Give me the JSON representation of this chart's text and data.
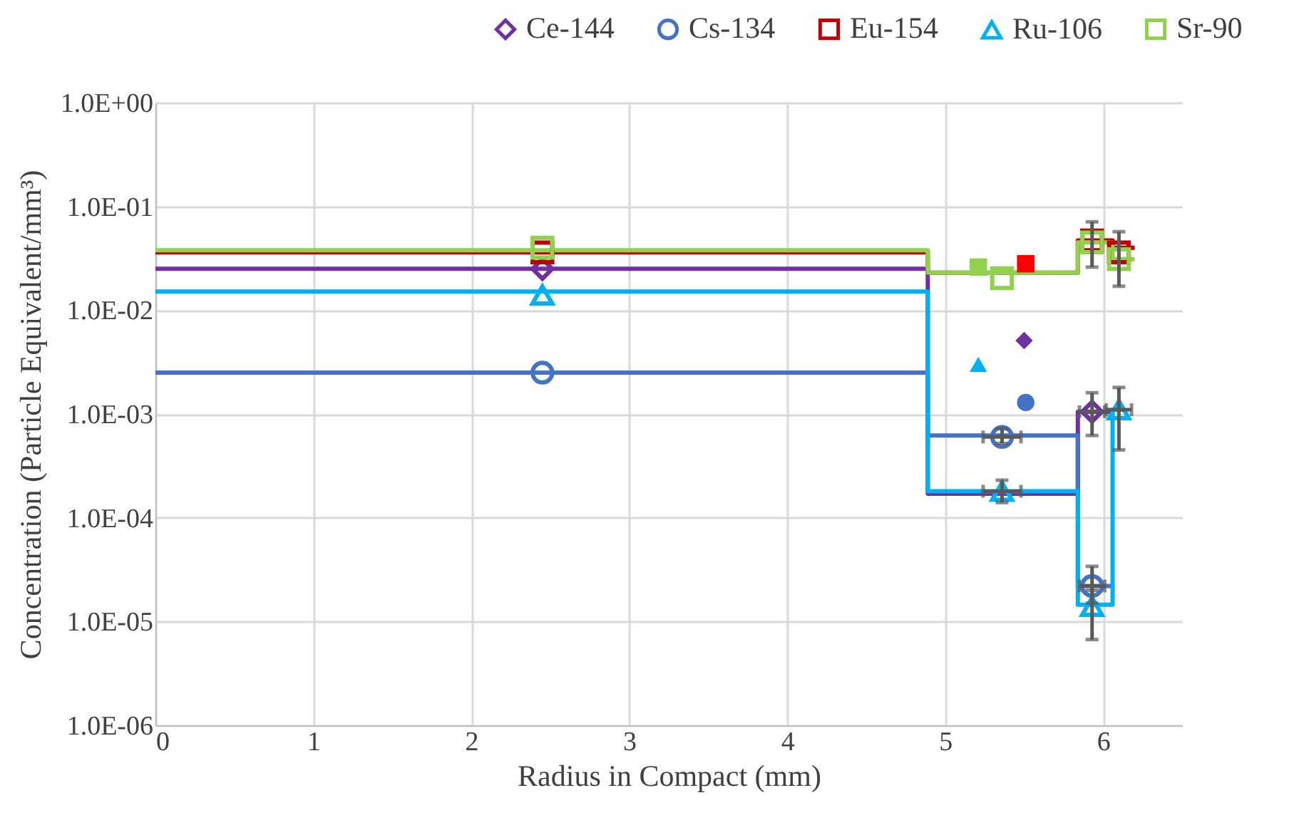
{
  "chart_data": {
    "type": "scatter",
    "xlabel": "Radius in Compact (mm)",
    "ylabel": "Concentration  (Particle Equivalent/mm³)",
    "log": "y",
    "grid": true,
    "legend": "top right",
    "xlim": [
      0,
      6.5
    ],
    "xticks": [
      0,
      1,
      2,
      3,
      4,
      5,
      6
    ],
    "ylim": [
      1e-06,
      1
    ],
    "yticks": [
      {
        "value": 1e-06,
        "label": "1.0E-06"
      },
      {
        "value": 1e-05,
        "label": "1.0E-05"
      },
      {
        "value": 0.0001,
        "label": "1.0E-04"
      },
      {
        "value": 0.001,
        "label": "1.0E-03"
      },
      {
        "value": 0.01,
        "label": "1.0E-02"
      },
      {
        "value": 0.1,
        "label": "1.0E-01"
      },
      {
        "value": 1,
        "label": "1.0E+00"
      }
    ],
    "series": [
      {
        "type": "step",
        "color": "#7030a0",
        "x": [
          0,
          4.89,
          5.84,
          6.06
        ],
        "values": [
          0.025,
          0.00017,
          0.00105,
          0.00105
        ]
      },
      {
        "type": "step",
        "color": "#4472c4",
        "x": [
          0,
          4.89,
          5.84,
          6.06
        ],
        "values": [
          0.0025,
          0.00062,
          2.2e-05,
          2.2e-05
        ]
      },
      {
        "type": "step",
        "color": "#c00000",
        "x": [
          0,
          4.89,
          5.84,
          6.06,
          6.2
        ],
        "values": [
          0.036,
          0.023,
          0.047,
          0.04,
          0.04
        ]
      },
      {
        "type": "step",
        "color": "#00b0f0",
        "x": [
          0,
          4.89,
          5.84,
          6.06,
          6.14
        ],
        "values": [
          0.0151,
          0.00018,
          1.45e-05,
          0.0011,
          0.0011
        ]
      },
      {
        "type": "step",
        "color": "#92d050",
        "x": [
          0,
          4.89,
          5.84,
          6.06,
          6.2
        ],
        "values": [
          0.0378,
          0.023,
          0.045,
          0.031,
          0.031
        ]
      },
      {
        "name": "Ce-144",
        "color": "#7030a0",
        "marker": "diamond",
        "x": [
          2.45,
          5.36,
          5.93
        ],
        "values": [
          0.025,
          null,
          0.00105
        ],
        "errors": [
          null,
          null,
          [
            0.00062,
            0.0016
          ]
        ],
        "xerrors": [
          null,
          null,
          0.08
        ]
      },
      {
        "name": "Cs-134",
        "color": "#4472c4",
        "marker": "circle",
        "x": [
          2.45,
          5.36,
          5.93
        ],
        "values": [
          0.0025,
          0.0006,
          2.2e-05
        ],
        "errors": [
          null,
          [
            0.00052,
            0.00072
          ],
          [
            1.5e-05,
            3.4e-05
          ]
        ],
        "xerrors": [
          null,
          0.12,
          0.08
        ]
      },
      {
        "name": "Eu-154",
        "color": "#c00000",
        "marker": "square",
        "x": [
          2.45,
          5.36,
          5.93,
          6.1
        ],
        "values": [
          0.036,
          null,
          0.047,
          0.036
        ],
        "errors": [
          null,
          null,
          [
            0.026,
            0.071
          ],
          [
            0.017,
            0.057
          ]
        ]
      },
      {
        "name": "Ru-106",
        "color": "#00b0f0",
        "marker": "triangle",
        "x": [
          2.45,
          5.36,
          5.93,
          6.1
        ],
        "values": [
          0.014,
          0.00018,
          1.4e-05,
          0.0011
        ],
        "errors": [
          null,
          [
            0.00014,
            0.00023
          ],
          [
            6.7e-06,
            2e-05
          ],
          [
            0.00045,
            0.0018
          ]
        ],
        "xerrors": [
          null,
          0.12,
          null,
          0.08
        ]
      },
      {
        "name": "Sr-90",
        "color": "#92d050",
        "marker": "square",
        "x": [
          2.45,
          5.36,
          5.93,
          6.1
        ],
        "values": [
          0.04,
          0.0203,
          0.045,
          0.031
        ]
      },
      {
        "color": "#92d050",
        "marker": "square",
        "x": [
          5.21
        ],
        "values": [
          0.026
        ]
      },
      {
        "color": "#ff0000",
        "marker": "square",
        "x": [
          5.51
        ],
        "values": [
          0.028
        ]
      },
      {
        "color": "#7030a0",
        "marker": "diamond",
        "x": [
          5.5
        ],
        "values": [
          0.0051
        ]
      },
      {
        "color": "#00b0f0",
        "marker": "triangle",
        "x": [
          5.21
        ],
        "values": [
          0.003
        ]
      },
      {
        "color": "#4472c4",
        "marker": "circle",
        "x": [
          5.51
        ],
        "values": [
          0.00129
        ]
      }
    ]
  }
}
